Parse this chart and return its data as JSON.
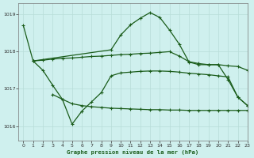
{
  "background_color": "#cff0ee",
  "grid_color": "#b8ddd8",
  "line_color": "#1a5c1a",
  "xlabel": "Graphe pression niveau de la mer (hPa)",
  "xlabel_color": "#1a5c1a",
  "ylim": [
    1015.6,
    1019.3
  ],
  "xlim": [
    -0.5,
    23
  ],
  "yticks": [
    1016,
    1017,
    1018,
    1019
  ],
  "xticks": [
    0,
    1,
    2,
    3,
    4,
    5,
    6,
    7,
    8,
    9,
    10,
    11,
    12,
    13,
    14,
    15,
    16,
    17,
    18,
    19,
    20,
    21,
    22,
    23
  ],
  "curve_big_arc": {
    "x": [
      0,
      1,
      9,
      10,
      11,
      12,
      13,
      14,
      15,
      16,
      17,
      18,
      19,
      20,
      21,
      22,
      23
    ],
    "y": [
      1018.7,
      1017.75,
      1018.05,
      1018.45,
      1018.72,
      1018.9,
      1019.05,
      1018.92,
      1018.58,
      1018.2,
      1017.72,
      1017.65,
      1017.65,
      1017.65,
      1017.25,
      1016.78,
      1016.55
    ]
  },
  "curve_flat": {
    "x": [
      1,
      2,
      3,
      4,
      5,
      6,
      7,
      8,
      9,
      10,
      11,
      12,
      13,
      14,
      15,
      16,
      17,
      18,
      19,
      20,
      21,
      22,
      23
    ],
    "y": [
      1017.75,
      1017.77,
      1017.8,
      1017.82,
      1017.83,
      1017.85,
      1017.87,
      1017.88,
      1017.9,
      1017.92,
      1017.93,
      1017.95,
      1017.96,
      1017.98,
      1018.0,
      1017.88,
      1017.73,
      1017.68,
      1017.65,
      1017.65,
      1017.62,
      1017.6,
      1017.5
    ]
  },
  "curve_wiggly": {
    "x": [
      1,
      2,
      3,
      4,
      5,
      6,
      7,
      8,
      9,
      10,
      11,
      12,
      13,
      14,
      15,
      16,
      17,
      18,
      19,
      20,
      21,
      22,
      23
    ],
    "y": [
      1017.75,
      1017.5,
      1017.1,
      1016.72,
      1016.05,
      1016.4,
      1016.65,
      1016.9,
      1017.35,
      1017.43,
      1017.45,
      1017.47,
      1017.48,
      1017.48,
      1017.47,
      1017.45,
      1017.42,
      1017.4,
      1017.38,
      1017.35,
      1017.32,
      1016.78,
      1016.55
    ]
  },
  "curve_bottom_flat": {
    "x": [
      3,
      4,
      5,
      6,
      7,
      8,
      9,
      10,
      11,
      12,
      13,
      14,
      15,
      16,
      17,
      18,
      19,
      20,
      21,
      22,
      23
    ],
    "y": [
      1016.85,
      1016.72,
      1016.6,
      1016.55,
      1016.52,
      1016.5,
      1016.48,
      1016.47,
      1016.46,
      1016.45,
      1016.44,
      1016.44,
      1016.43,
      1016.43,
      1016.42,
      1016.42,
      1016.42,
      1016.42,
      1016.42,
      1016.42,
      1016.42
    ]
  }
}
